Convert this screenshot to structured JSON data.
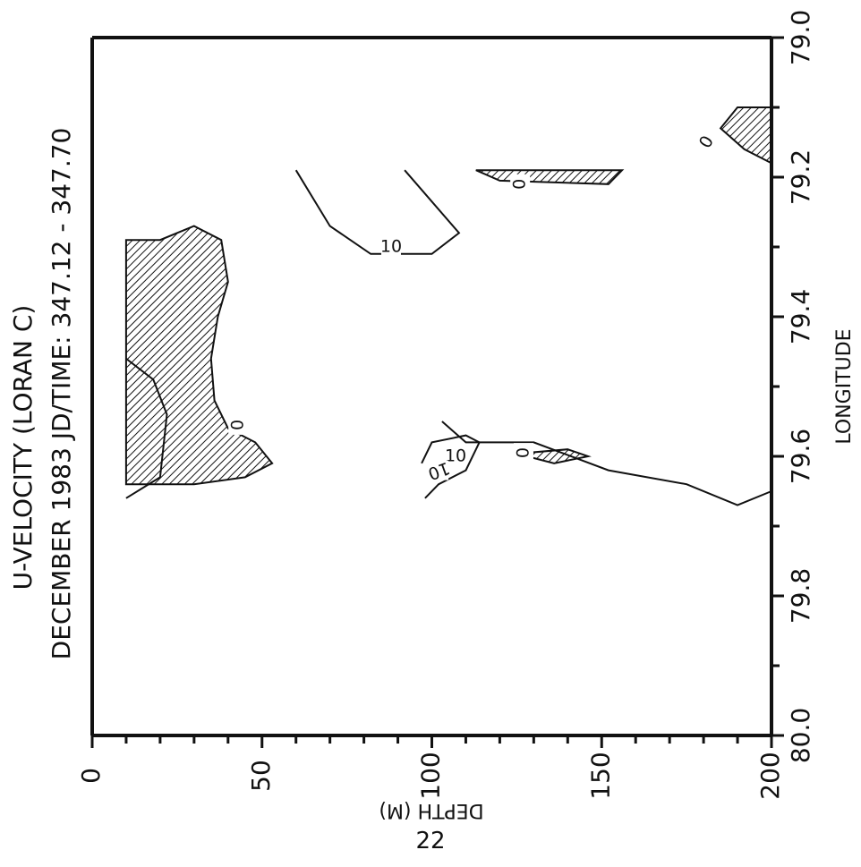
{
  "page_number": "22",
  "chart_data": {
    "type": "contour",
    "title_lines": [
      "U-VELOCITY     (LORAN C)",
      "DECEMBER 1983     JD/TIME: 347.12  -  347.70"
    ],
    "xlabel": "DEPTH (M)",
    "ylabel": "LONGITUDE",
    "x_ticks": [
      "0",
      "50",
      "100",
      "150",
      "200"
    ],
    "y_ticks": [
      "80.0",
      "79.8",
      "79.6",
      "79.4",
      "79.2",
      "79.0"
    ],
    "xlim": [
      0,
      200
    ],
    "ylim": [
      80.0,
      79.0
    ],
    "contour_labels": [
      "0",
      "0",
      "0",
      "0",
      "10",
      "10",
      "10"
    ],
    "contours": [
      {
        "level": 0,
        "shaded": true,
        "points": [
          [
            10,
            79.64
          ],
          [
            30,
            79.64
          ],
          [
            45,
            79.63
          ],
          [
            53,
            79.61
          ],
          [
            48,
            79.58
          ],
          [
            40,
            79.56
          ],
          [
            36,
            79.52
          ],
          [
            35,
            79.46
          ],
          [
            37,
            79.4
          ],
          [
            40,
            79.35
          ],
          [
            38,
            79.29
          ],
          [
            30,
            79.27
          ],
          [
            20,
            79.29
          ],
          [
            10,
            79.29
          ]
        ]
      },
      {
        "level": 0,
        "shaded": true,
        "points": [
          [
            128,
            79.6
          ],
          [
            136,
            79.61
          ],
          [
            146,
            79.6
          ],
          [
            140,
            79.59
          ],
          [
            128,
            79.595
          ]
        ]
      },
      {
        "level": 0,
        "shaded": true,
        "points": [
          [
            113,
            79.19
          ],
          [
            120,
            79.205
          ],
          [
            152,
            79.21
          ],
          [
            156,
            79.19
          ]
        ]
      },
      {
        "level": 0,
        "shaded": true,
        "points": [
          [
            200,
            79.18
          ],
          [
            192,
            79.16
          ],
          [
            185,
            79.13
          ],
          [
            190,
            79.1
          ],
          [
            200,
            79.1
          ]
        ]
      },
      {
        "level": 10,
        "shaded": false,
        "points": [
          [
            103,
            79.55
          ],
          [
            110,
            79.58
          ],
          [
            130,
            79.58
          ],
          [
            152,
            79.62
          ],
          [
            175,
            79.64
          ],
          [
            190,
            79.67
          ],
          [
            200,
            79.65
          ]
        ]
      },
      {
        "level": 10,
        "shaded": false,
        "points": [
          [
            98,
            79.66
          ],
          [
            102,
            79.64
          ],
          [
            110,
            79.62
          ],
          [
            114,
            79.58
          ],
          [
            110,
            79.57
          ],
          [
            100,
            79.58
          ],
          [
            97,
            79.61
          ]
        ]
      },
      {
        "level": 10,
        "shaded": false,
        "points": [
          [
            60,
            79.19
          ],
          [
            70,
            79.27
          ],
          [
            82,
            79.31
          ],
          [
            100,
            79.31
          ],
          [
            108,
            79.28
          ],
          [
            92,
            79.19
          ]
        ]
      },
      {
        "level": 0,
        "shaded": false,
        "points": [
          [
            10,
            79.66
          ],
          [
            20,
            79.63
          ],
          [
            22,
            79.54
          ],
          [
            18,
            79.49
          ],
          [
            10,
            79.46
          ]
        ]
      }
    ]
  }
}
